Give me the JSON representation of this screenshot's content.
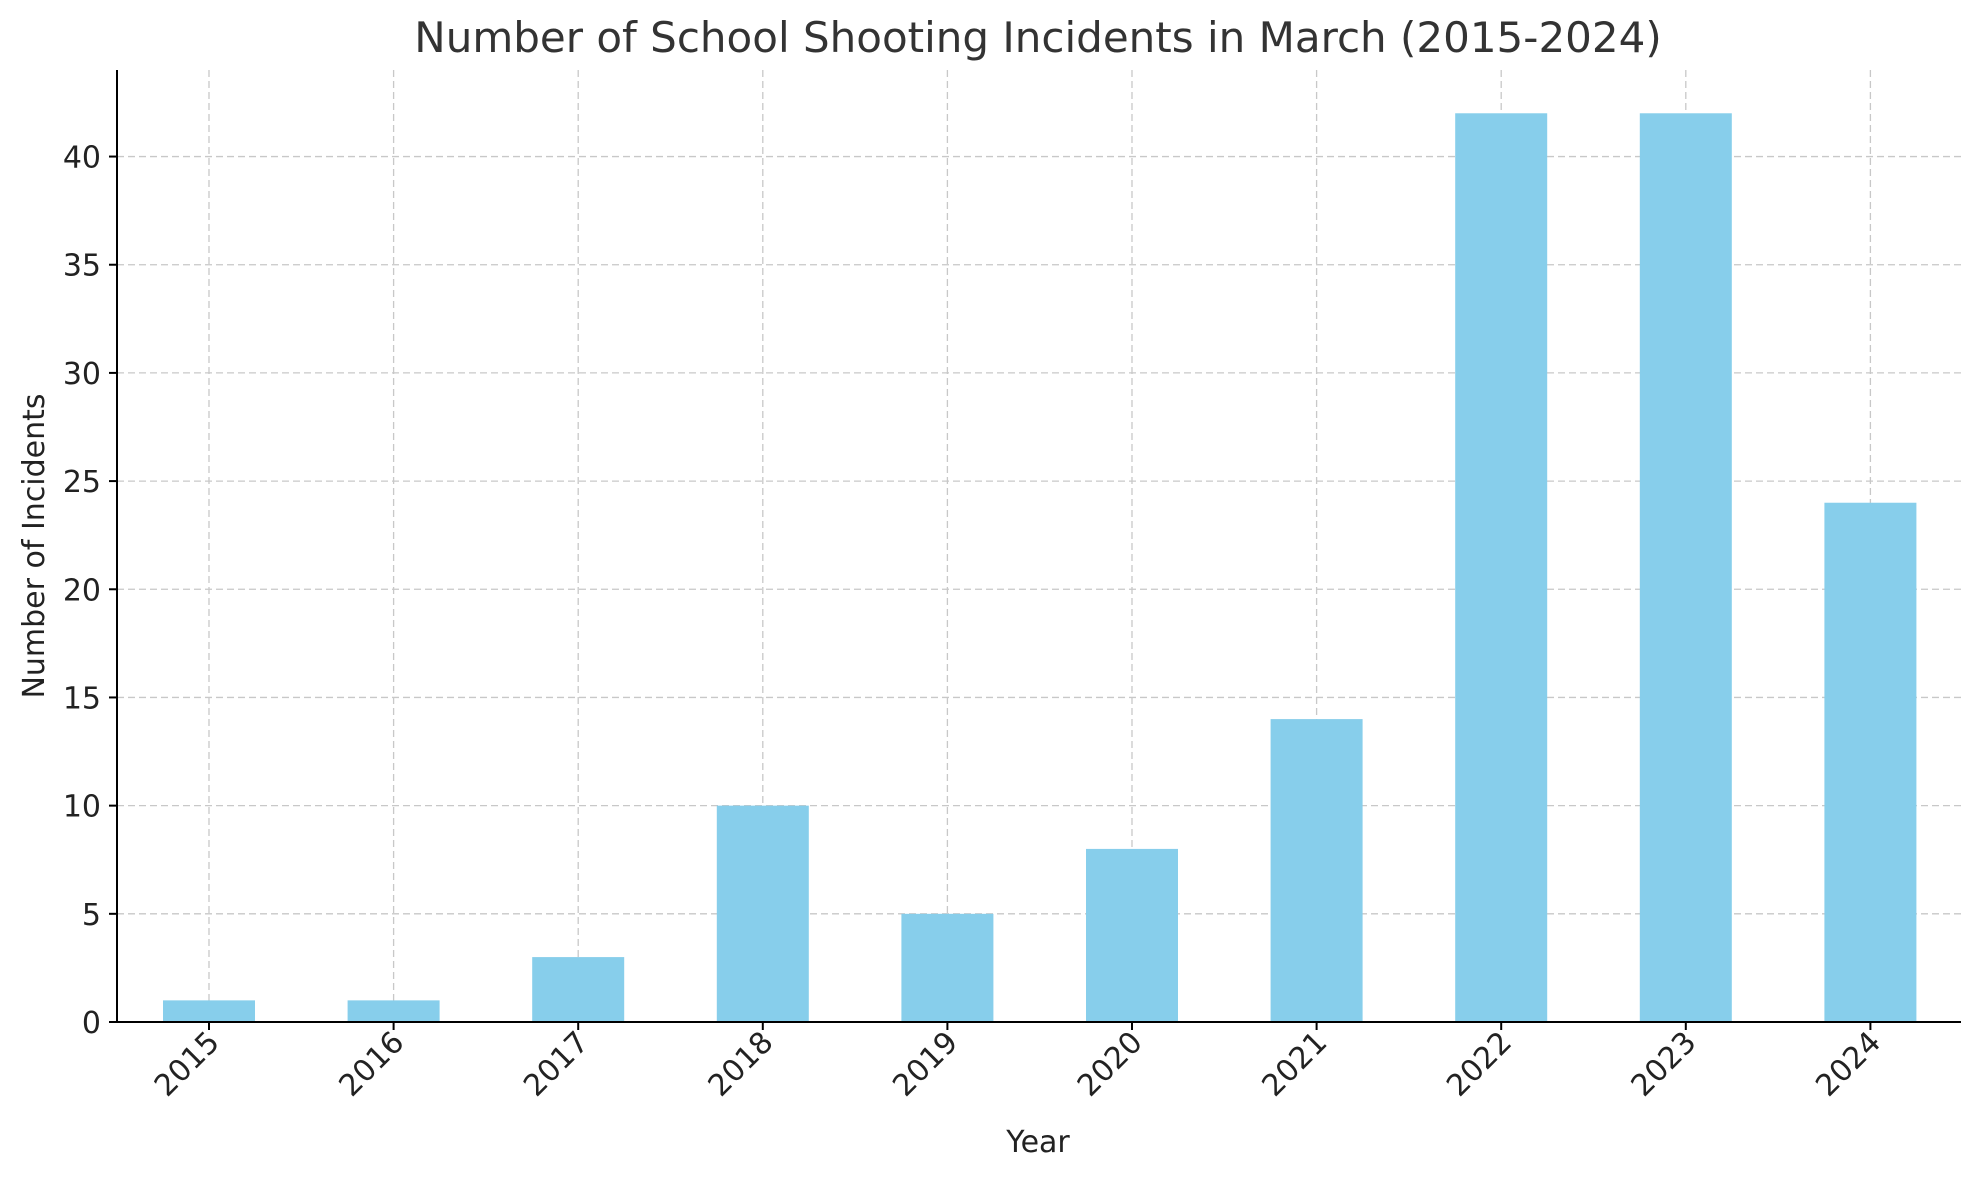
{
  "chart_data": {
    "type": "bar",
    "title": "Number of School Shooting Incidents in March (2015-2024)",
    "xlabel": "Year",
    "ylabel": "Number of Incidents",
    "categories": [
      "2015",
      "2016",
      "2017",
      "2018",
      "2019",
      "2020",
      "2021",
      "2022",
      "2023",
      "2024"
    ],
    "values": [
      1,
      1,
      3,
      10,
      5,
      8,
      14,
      42,
      42,
      24
    ],
    "ylim": [
      0,
      44
    ],
    "yticks": [
      0,
      5,
      10,
      15,
      20,
      25,
      30,
      35,
      40
    ],
    "bar_color": "#87ceeb",
    "grid": true,
    "legend": "none"
  }
}
